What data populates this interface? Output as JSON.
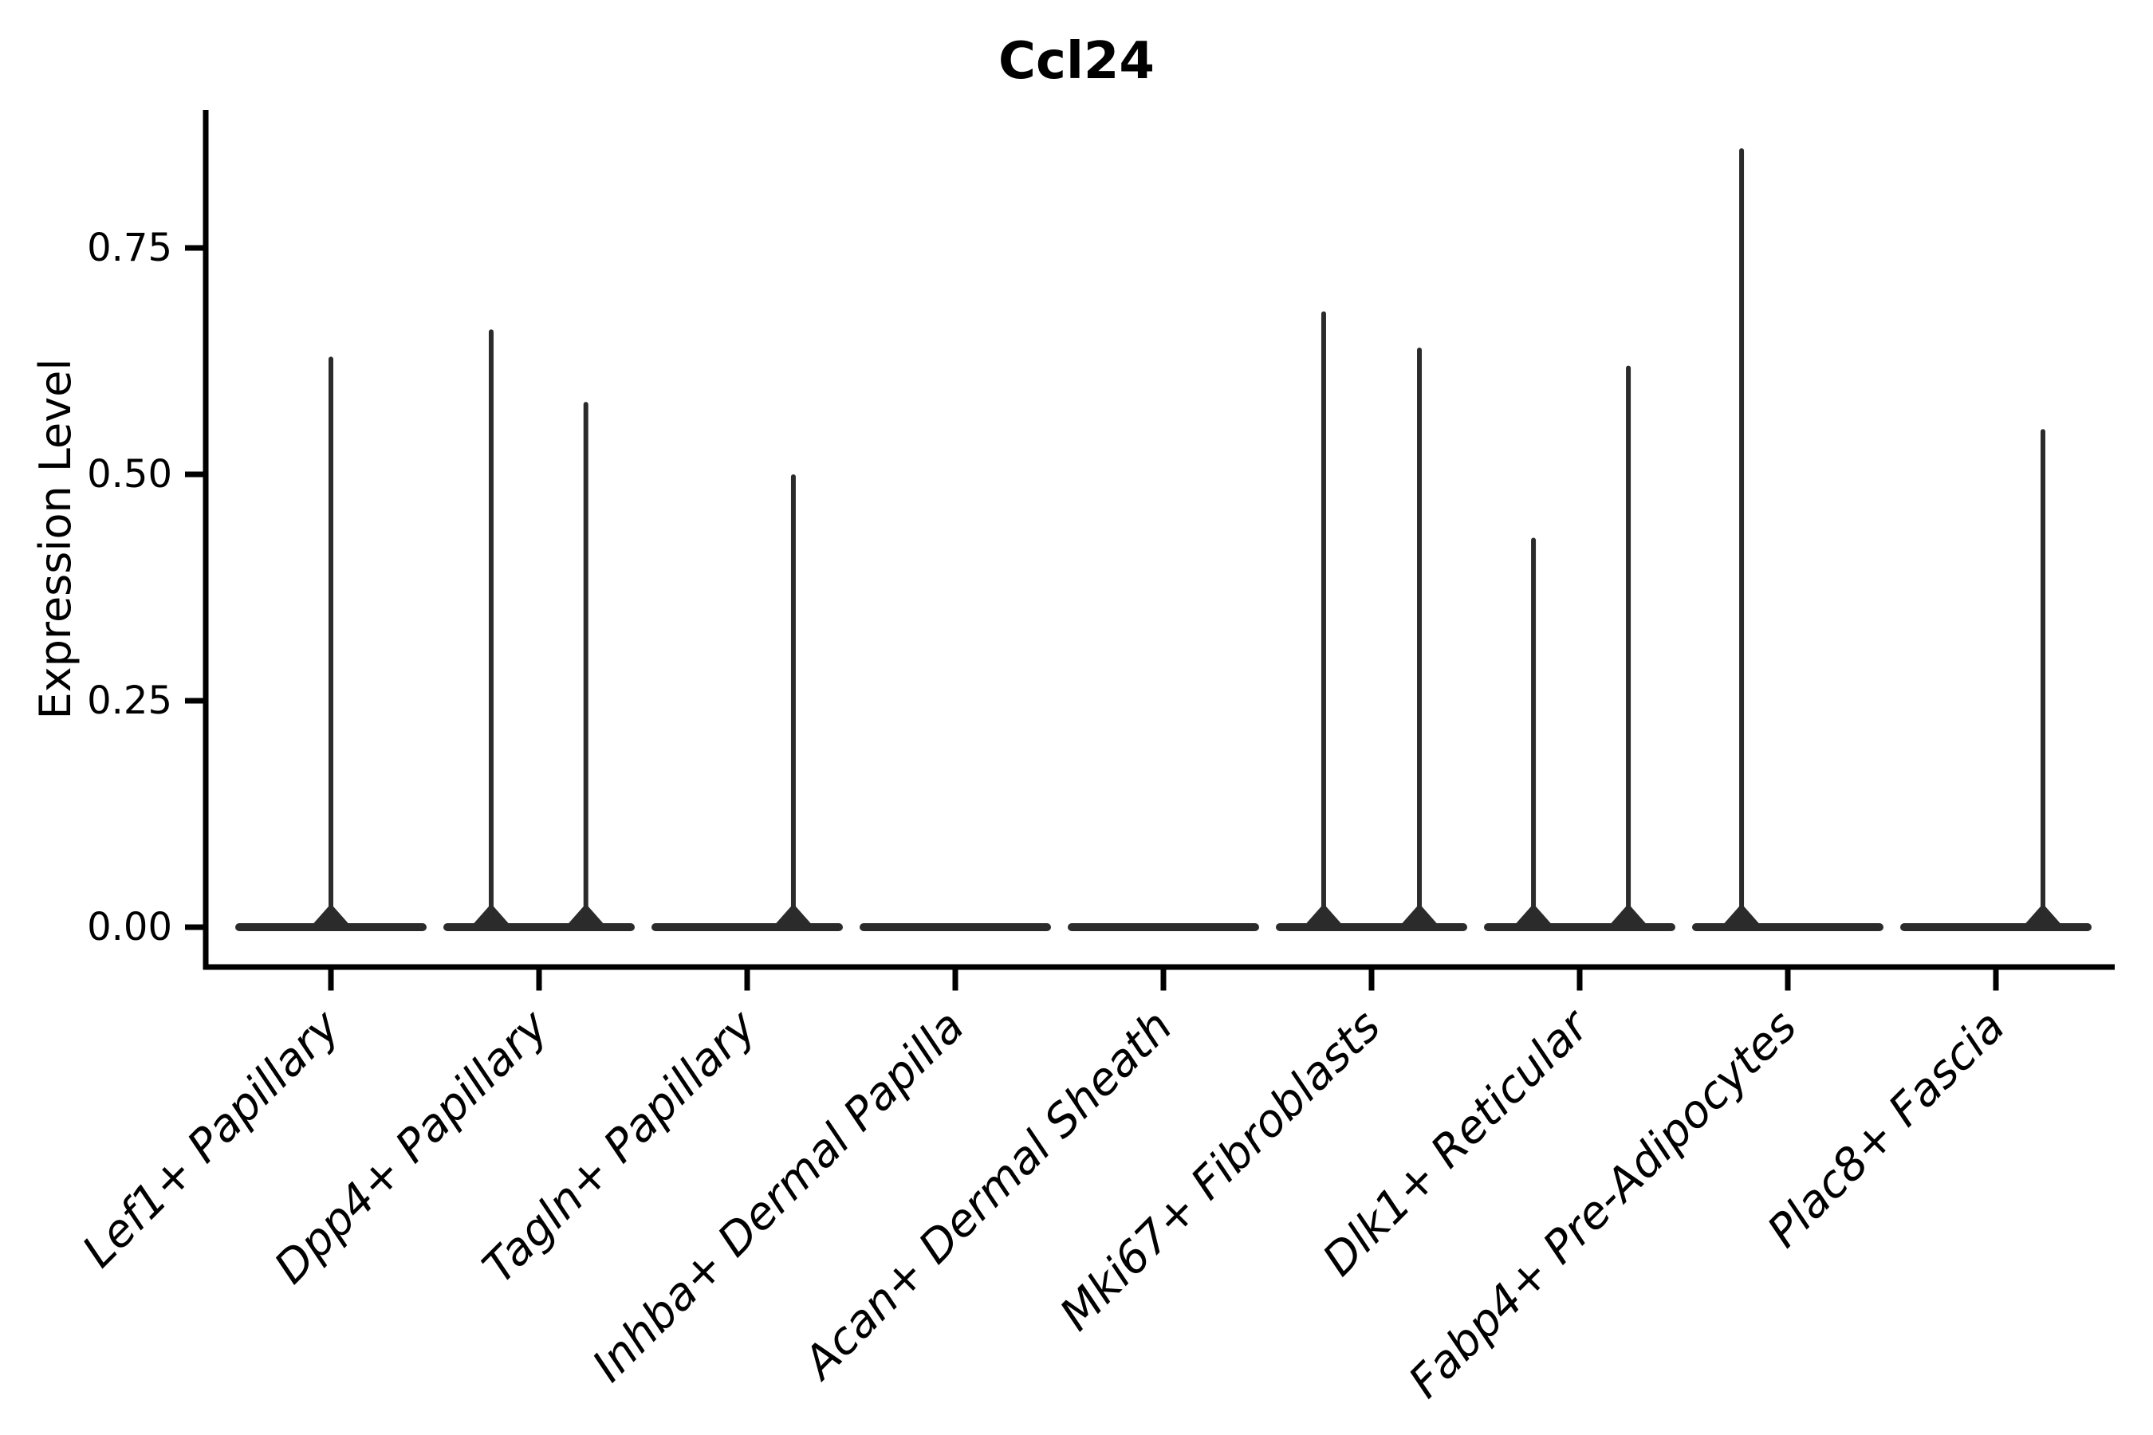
{
  "chart_data": {
    "type": "violin",
    "title": "Ccl24",
    "ylabel": "Expression Level",
    "xlabel": "",
    "grid": false,
    "legend_position": "none",
    "background_color": "#ffffff",
    "violin_color": "#2b2b2b",
    "axis_color": "#000000",
    "text_color": "#000000",
    "ylim": [
      -0.044,
      0.9
    ],
    "y_ticks": [
      {
        "label": "0.00",
        "value": 0.0
      },
      {
        "label": "0.25",
        "value": 0.25
      },
      {
        "label": "0.50",
        "value": 0.5
      },
      {
        "label": "0.75",
        "value": 0.75
      }
    ],
    "categories": [
      "Lef1+ Papillary",
      "Dpp4+ Papillary",
      "Tagln+ Papillary",
      "Inhba+ Dermal Papilla",
      "Acan+ Dermal Sheath",
      "Mki67+ Fibroblasts",
      "Dlk1+ Reticular",
      "Fabp4+ Pre-Adipocytes",
      "Plac8+ Fascia"
    ],
    "violins": [
      {
        "category": "Lef1+ Papillary",
        "baseline_value": 0,
        "spikes": [
          {
            "offset_frac": 0.0,
            "max_value": 0.63
          }
        ]
      },
      {
        "category": "Dpp4+ Papillary",
        "baseline_value": 0,
        "spikes": [
          {
            "offset_frac": -0.23,
            "max_value": 0.66
          },
          {
            "offset_frac": 0.225,
            "max_value": 0.58
          }
        ]
      },
      {
        "category": "Tagln+ Papillary",
        "baseline_value": 0,
        "spikes": [
          {
            "offset_frac": 0.222,
            "max_value": 0.5
          }
        ]
      },
      {
        "category": "Inhba+ Dermal Papilla",
        "baseline_value": 0,
        "spikes": []
      },
      {
        "category": "Acan+ Dermal Sheath",
        "baseline_value": 0,
        "spikes": []
      },
      {
        "category": "Mki67+ Fibroblasts",
        "baseline_value": 0,
        "spikes": [
          {
            "offset_frac": -0.23,
            "max_value": 0.68
          },
          {
            "offset_frac": 0.23,
            "max_value": 0.64
          }
        ]
      },
      {
        "category": "Dlk1+ Reticular",
        "baseline_value": 0,
        "spikes": [
          {
            "offset_frac": -0.222,
            "max_value": 0.43
          },
          {
            "offset_frac": 0.234,
            "max_value": 0.62
          }
        ]
      },
      {
        "category": "Fabp4+ Pre-Adipocytes",
        "baseline_value": 0,
        "spikes": [
          {
            "offset_frac": -0.222,
            "max_value": 0.86
          }
        ]
      },
      {
        "category": "Plac8+ Fascia",
        "baseline_value": 0,
        "spikes": [
          {
            "offset_frac": 0.226,
            "max_value": 0.55
          }
        ]
      }
    ]
  }
}
